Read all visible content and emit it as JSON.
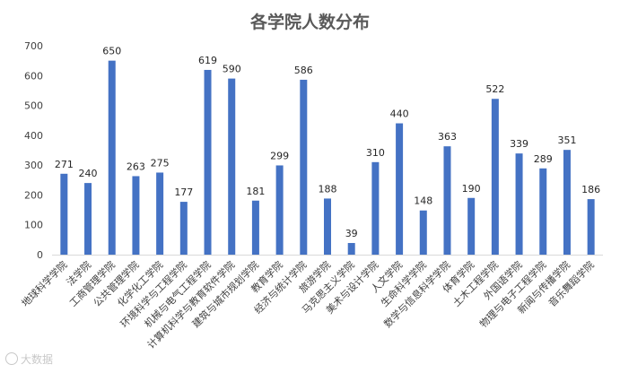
{
  "watermark": "大数据",
  "chart_data": {
    "type": "bar",
    "title": "各学院人数分布",
    "xlabel": "",
    "ylabel": "",
    "ylim": [
      0,
      700
    ],
    "yticks": [
      0,
      100,
      200,
      300,
      400,
      500,
      600,
      700
    ],
    "grid": false,
    "legend": "none",
    "bar_color": "#4472c4",
    "categories": [
      "地球科学学院",
      "法学院",
      "工商管理学院",
      "公共管理学院",
      "化学化工学院",
      "环境科学与工程学院",
      "机械与电气工程学院",
      "计算机科学与教育软件学院",
      "建筑与城市规划学院",
      "教育学院",
      "经济与统计学院",
      "旅游学院",
      "马克思主义学院",
      "美术与设计学院",
      "人文学院",
      "生命科学学院",
      "数学与信息科学学院",
      "体育学院",
      "土木工程学院",
      "外国语学院",
      "物理与电子工程学院",
      "新闻与传播学院",
      "音乐舞蹈学院"
    ],
    "values": [
      271,
      240,
      650,
      263,
      275,
      177,
      619,
      590,
      181,
      299,
      586,
      188,
      39,
      310,
      440,
      148,
      363,
      190,
      522,
      339,
      289,
      351,
      186
    ]
  }
}
